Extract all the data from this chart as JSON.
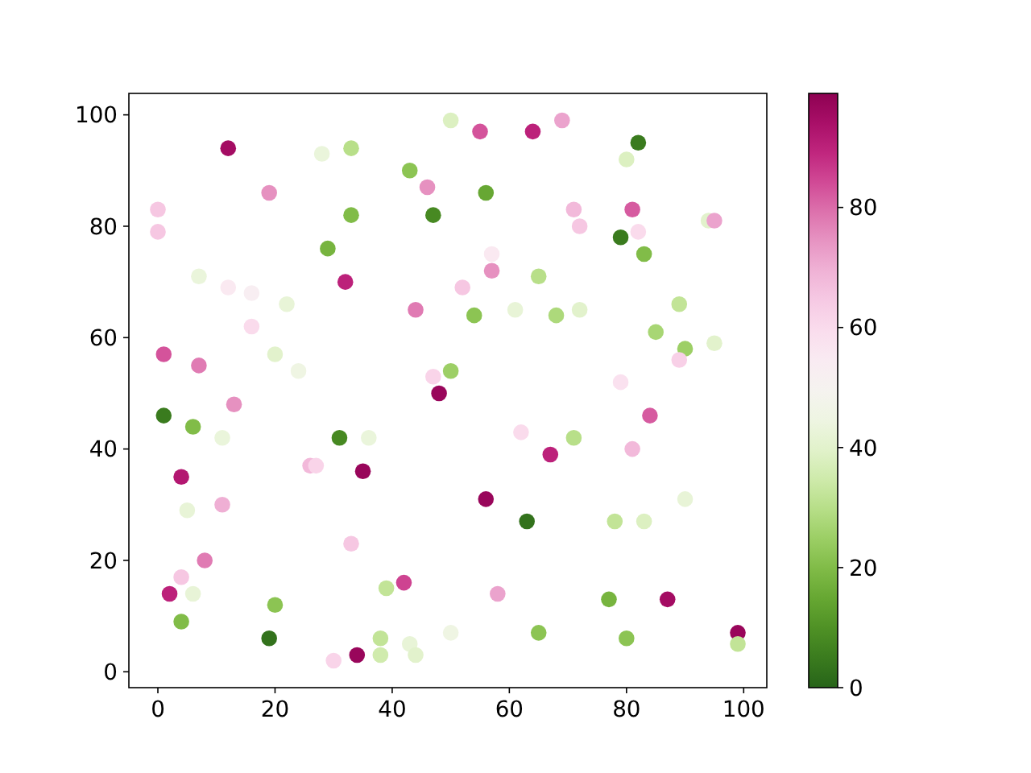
{
  "chart_data": {
    "type": "scatter",
    "x": [
      50,
      12,
      28,
      33,
      43,
      46,
      19,
      0,
      0,
      33,
      47,
      29,
      7,
      12,
      16,
      32,
      22,
      44,
      16,
      1,
      7,
      20,
      24,
      47,
      50,
      48,
      55,
      64,
      69,
      82,
      80,
      56,
      71,
      72,
      81,
      79,
      82,
      83,
      94,
      95,
      57,
      57,
      52,
      65,
      54,
      61,
      68,
      72,
      89,
      85,
      90,
      89,
      95,
      79,
      1,
      6,
      11,
      13,
      31,
      36,
      26,
      27,
      35,
      4,
      5,
      11,
      33,
      8,
      4,
      2,
      6,
      39,
      42,
      20,
      4,
      19,
      38,
      43,
      38,
      44,
      30,
      34,
      50,
      84,
      62,
      71,
      67,
      81,
      56,
      63,
      78,
      83,
      90,
      58,
      77,
      87,
      65,
      80,
      99,
      99
    ],
    "values": [
      99,
      94,
      93,
      94,
      90,
      87,
      86,
      83,
      79,
      82,
      82,
      76,
      71,
      69,
      68,
      70,
      66,
      65,
      62,
      57,
      55,
      57,
      54,
      53,
      54,
      50,
      97,
      97,
      99,
      95,
      92,
      86,
      83,
      80,
      83,
      78,
      79,
      75,
      81,
      81,
      75,
      72,
      69,
      71,
      64,
      65,
      64,
      65,
      66,
      61,
      58,
      56,
      59,
      52,
      46,
      44,
      42,
      48,
      42,
      42,
      37,
      37,
      36,
      35,
      29,
      30,
      23,
      20,
      17,
      14,
      14,
      15,
      16,
      12,
      9,
      6,
      6,
      5,
      3,
      3,
      2,
      3,
      7,
      46,
      43,
      42,
      39,
      40,
      31,
      27,
      27,
      27,
      31,
      14,
      13,
      13,
      7,
      6,
      7,
      5
    ],
    "cvalues": [
      38,
      95,
      43,
      30,
      22,
      75,
      75,
      65,
      65,
      20,
      8,
      18,
      43,
      55,
      53,
      90,
      42,
      78,
      60,
      83,
      78,
      40,
      45,
      62,
      25,
      97,
      83,
      90,
      72,
      5,
      38,
      15,
      68,
      65,
      82,
      5,
      60,
      20,
      40,
      72,
      55,
      75,
      65,
      30,
      22,
      42,
      28,
      40,
      32,
      27,
      25,
      63,
      40,
      58,
      5,
      20,
      43,
      75,
      8,
      43,
      68,
      62,
      97,
      92,
      42,
      70,
      65,
      78,
      65,
      90,
      42,
      32,
      85,
      22,
      20,
      3,
      32,
      42,
      35,
      40,
      62,
      97,
      45,
      82,
      60,
      30,
      90,
      68,
      97,
      3,
      32,
      38,
      42,
      72,
      18,
      95,
      22,
      22,
      97,
      32
    ],
    "clim": [
      0,
      99
    ],
    "cticks": [
      0,
      20,
      40,
      60,
      80
    ],
    "xlim": [
      -4.95,
      103.95
    ],
    "ylim": [
      -2.85,
      103.85
    ],
    "xticks": [
      0,
      20,
      40,
      60,
      80,
      100
    ],
    "yticks": [
      0,
      20,
      40,
      60,
      80,
      100
    ],
    "marker": "circle"
  }
}
